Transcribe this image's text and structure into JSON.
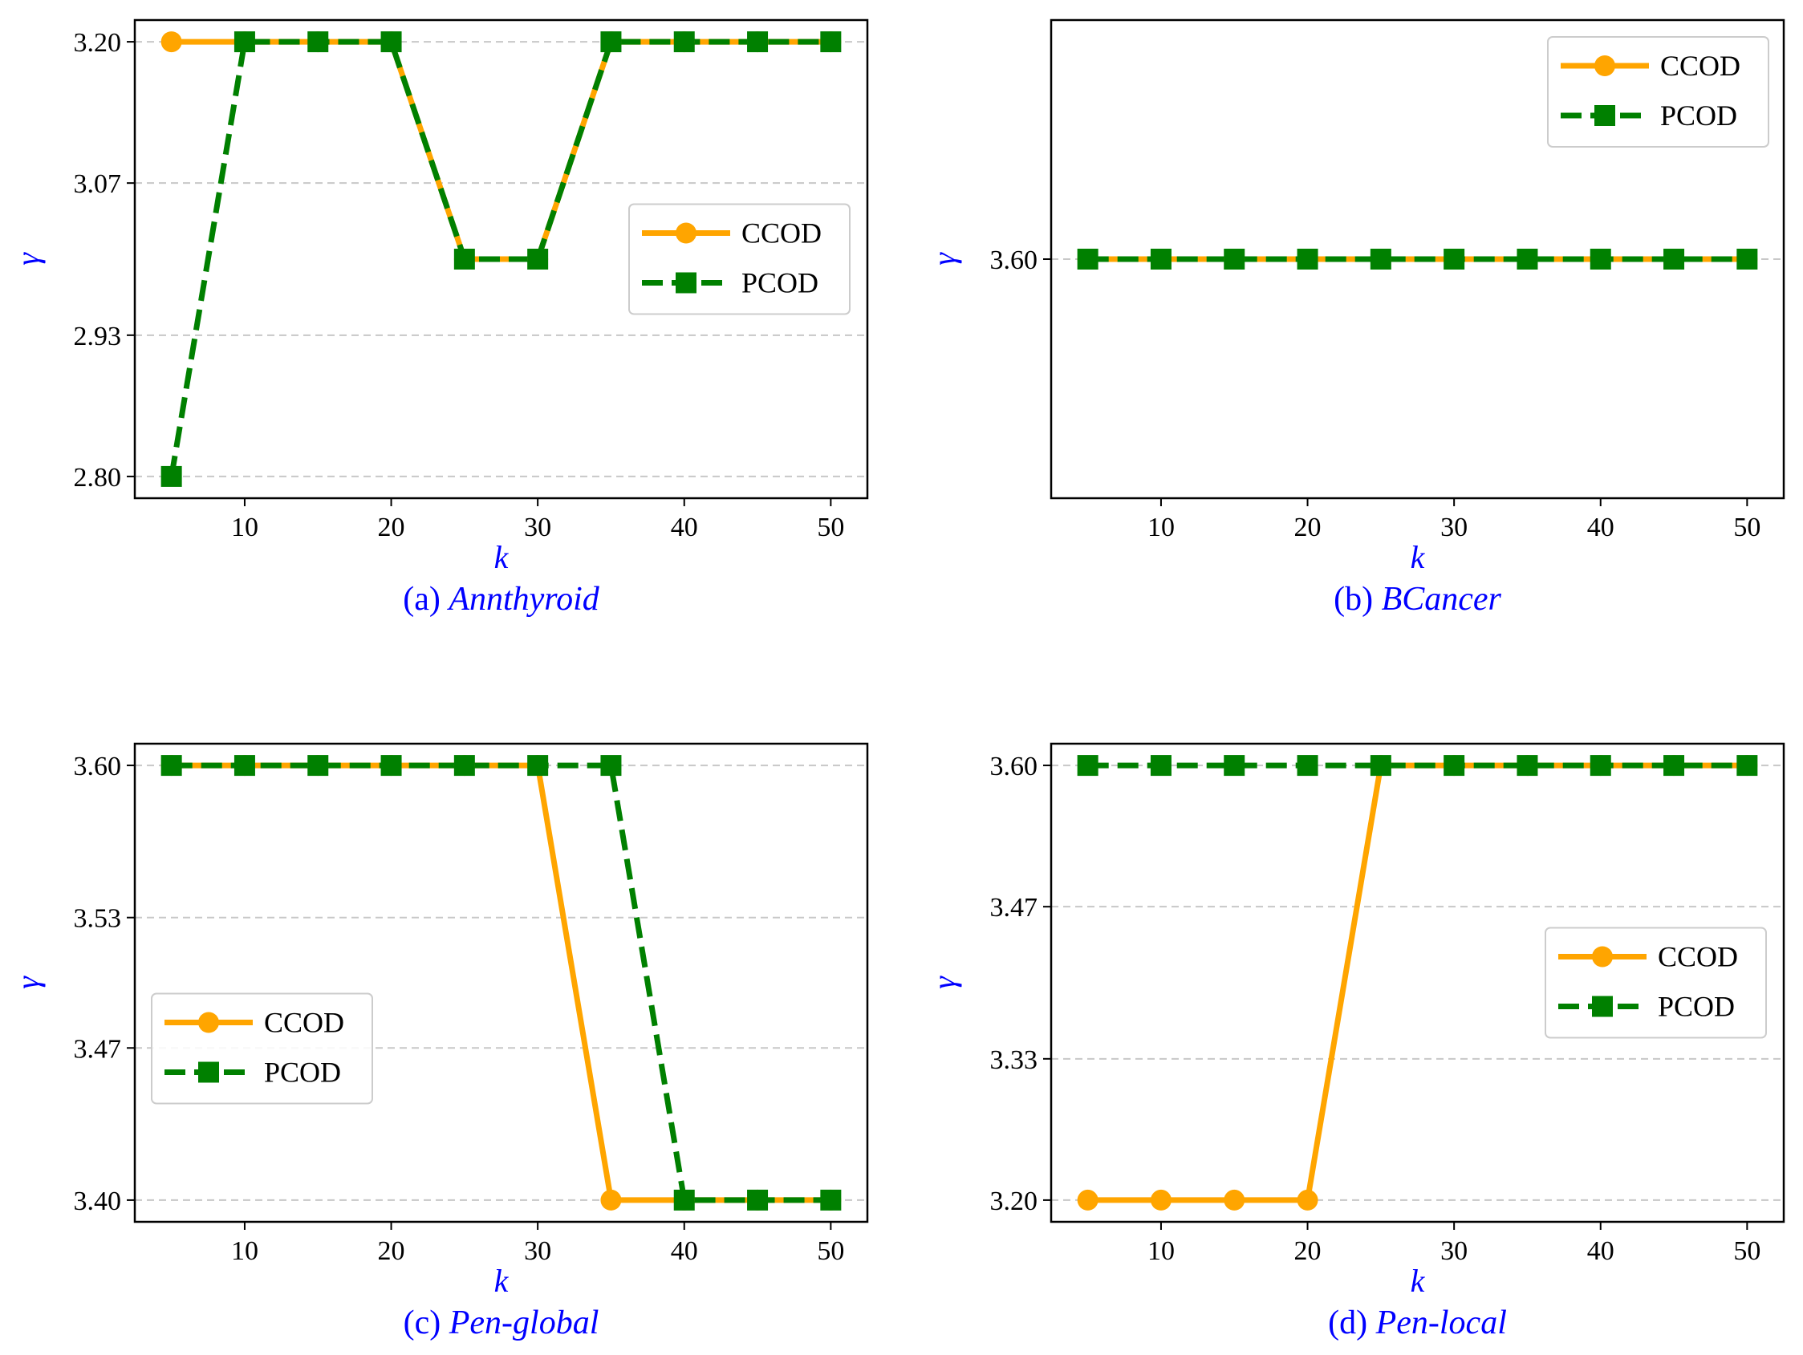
{
  "chart_data": [
    {
      "type": "line",
      "caption_prefix": "(a) ",
      "caption_name": "Annthyroid",
      "xlabel": "k",
      "ylabel": "γ",
      "x": [
        5,
        10,
        15,
        20,
        25,
        30,
        35,
        40,
        45,
        50
      ],
      "xticks": [
        "10",
        "20",
        "30",
        "40",
        "50"
      ],
      "xlim": [
        2.5,
        52.5
      ],
      "yticks": [
        "2.80",
        "2.93",
        "3.07",
        "3.20"
      ],
      "ylim": [
        2.78,
        3.22
      ],
      "grid": true,
      "legend_position": "center-right",
      "series": [
        {
          "name": "CCOD",
          "color": "#FFA500",
          "marker": "circle",
          "linestyle": "solid",
          "values": [
            3.2,
            3.2,
            3.2,
            3.2,
            3.0,
            3.0,
            3.2,
            3.2,
            3.2,
            3.2
          ]
        },
        {
          "name": "PCOD",
          "color": "#008000",
          "marker": "square",
          "linestyle": "dashed",
          "values": [
            2.8,
            3.2,
            3.2,
            3.2,
            3.0,
            3.0,
            3.2,
            3.2,
            3.2,
            3.2
          ]
        }
      ]
    },
    {
      "type": "line",
      "caption_prefix": "(b) ",
      "caption_name": "BCancer",
      "xlabel": "k",
      "ylabel": "γ",
      "x": [
        5,
        10,
        15,
        20,
        25,
        30,
        35,
        40,
        45,
        50
      ],
      "xticks": [
        "10",
        "20",
        "30",
        "40",
        "50"
      ],
      "xlim": [
        2.5,
        52.5
      ],
      "yticks": [
        "3.60"
      ],
      "ylim": [
        3.38,
        3.82
      ],
      "grid": true,
      "legend_position": "top-right",
      "series": [
        {
          "name": "CCOD",
          "color": "#FFA500",
          "marker": "circle",
          "linestyle": "solid",
          "values": [
            3.6,
            3.6,
            3.6,
            3.6,
            3.6,
            3.6,
            3.6,
            3.6,
            3.6,
            3.6
          ]
        },
        {
          "name": "PCOD",
          "color": "#008000",
          "marker": "square",
          "linestyle": "dashed",
          "values": [
            3.6,
            3.6,
            3.6,
            3.6,
            3.6,
            3.6,
            3.6,
            3.6,
            3.6,
            3.6
          ]
        }
      ]
    },
    {
      "type": "line",
      "caption_prefix": "(c) ",
      "caption_name": "Pen-global",
      "xlabel": "k",
      "ylabel": "γ",
      "x": [
        5,
        10,
        15,
        20,
        25,
        30,
        35,
        40,
        45,
        50
      ],
      "xticks": [
        "10",
        "20",
        "30",
        "40",
        "50"
      ],
      "xlim": [
        2.5,
        52.5
      ],
      "yticks": [
        "3.40",
        "3.47",
        "3.53",
        "3.60"
      ],
      "ylim": [
        3.39,
        3.61
      ],
      "grid": true,
      "legend_position": "center-left",
      "series": [
        {
          "name": "CCOD",
          "color": "#FFA500",
          "marker": "circle",
          "linestyle": "solid",
          "values": [
            3.6,
            3.6,
            3.6,
            3.6,
            3.6,
            3.6,
            3.4,
            3.4,
            3.4,
            3.4
          ]
        },
        {
          "name": "PCOD",
          "color": "#008000",
          "marker": "square",
          "linestyle": "dashed",
          "values": [
            3.6,
            3.6,
            3.6,
            3.6,
            3.6,
            3.6,
            3.6,
            3.4,
            3.4,
            3.4
          ]
        }
      ]
    },
    {
      "type": "line",
      "caption_prefix": "(d) ",
      "caption_name": "Pen-local",
      "xlabel": "k",
      "ylabel": "γ",
      "x": [
        5,
        10,
        15,
        20,
        25,
        30,
        35,
        40,
        45,
        50
      ],
      "xticks": [
        "10",
        "20",
        "30",
        "40",
        "50"
      ],
      "xlim": [
        2.5,
        52.5
      ],
      "yticks": [
        "3.20",
        "3.33",
        "3.47",
        "3.60"
      ],
      "ylim": [
        3.18,
        3.62
      ],
      "grid": true,
      "legend_position": "center-right",
      "series": [
        {
          "name": "CCOD",
          "color": "#FFA500",
          "marker": "circle",
          "linestyle": "solid",
          "values": [
            3.2,
            3.2,
            3.2,
            3.2,
            3.6,
            3.6,
            3.6,
            3.6,
            3.6,
            3.6
          ]
        },
        {
          "name": "PCOD",
          "color": "#008000",
          "marker": "square",
          "linestyle": "dashed",
          "values": [
            3.6,
            3.6,
            3.6,
            3.6,
            3.6,
            3.6,
            3.6,
            3.6,
            3.6,
            3.6
          ]
        }
      ]
    }
  ]
}
